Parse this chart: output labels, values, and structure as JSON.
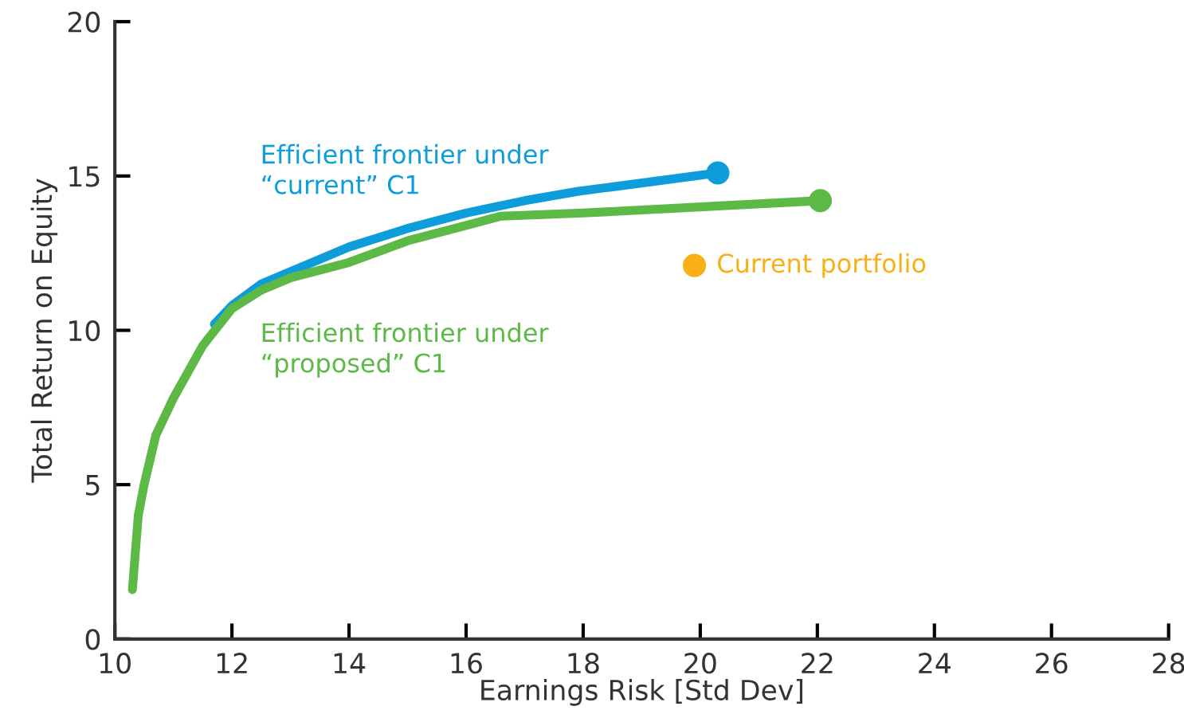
{
  "chart_data": {
    "type": "line",
    "xlabel": "Earnings Risk [Std Dev]",
    "ylabel": "Total Return on Equity",
    "xlim": [
      10,
      28
    ],
    "xticks": [
      10,
      12,
      14,
      16,
      18,
      20,
      22,
      24,
      26,
      28
    ],
    "ylim": [
      0,
      20
    ],
    "yticks": [
      0,
      5,
      10,
      15,
      20
    ],
    "grid": false,
    "legend": false,
    "series": [
      {
        "name": "Efficient frontier under\n“current” C1",
        "color": "#0d9ddb",
        "x": [
          11.7,
          12.0,
          12.5,
          13.0,
          13.5,
          14.0,
          15.0,
          16.0,
          17.0,
          17.9,
          20.3
        ],
        "values": [
          10.2,
          10.8,
          11.5,
          11.9,
          12.3,
          12.7,
          13.3,
          13.8,
          14.2,
          14.5,
          15.1
        ]
      },
      {
        "name": "Efficient frontier under\n“proposed” C1",
        "color": "#5cb946",
        "x": [
          10.3,
          10.4,
          10.5,
          10.7,
          11.0,
          11.5,
          12.0,
          12.5,
          13.0,
          14.0,
          15.0,
          16.0,
          16.6,
          18.0,
          22.05
        ],
        "values": [
          1.6,
          4.0,
          5.0,
          6.6,
          7.8,
          9.5,
          10.7,
          11.3,
          11.7,
          12.2,
          12.9,
          13.4,
          13.7,
          13.8,
          14.2
        ]
      },
      {
        "type": "scatter",
        "color": "#0d9ddb",
        "marker": "circle",
        "x": [
          20.3
        ],
        "values": [
          15.1
        ]
      },
      {
        "type": "scatter",
        "color": "#5cb946",
        "marker": "circle",
        "x": [
          22.05
        ],
        "values": [
          14.2
        ]
      },
      {
        "type": "scatter",
        "name": "Current portfolio",
        "color": "#f9b016",
        "marker": "circle",
        "x": [
          19.9
        ],
        "values": [
          12.1
        ]
      }
    ]
  }
}
